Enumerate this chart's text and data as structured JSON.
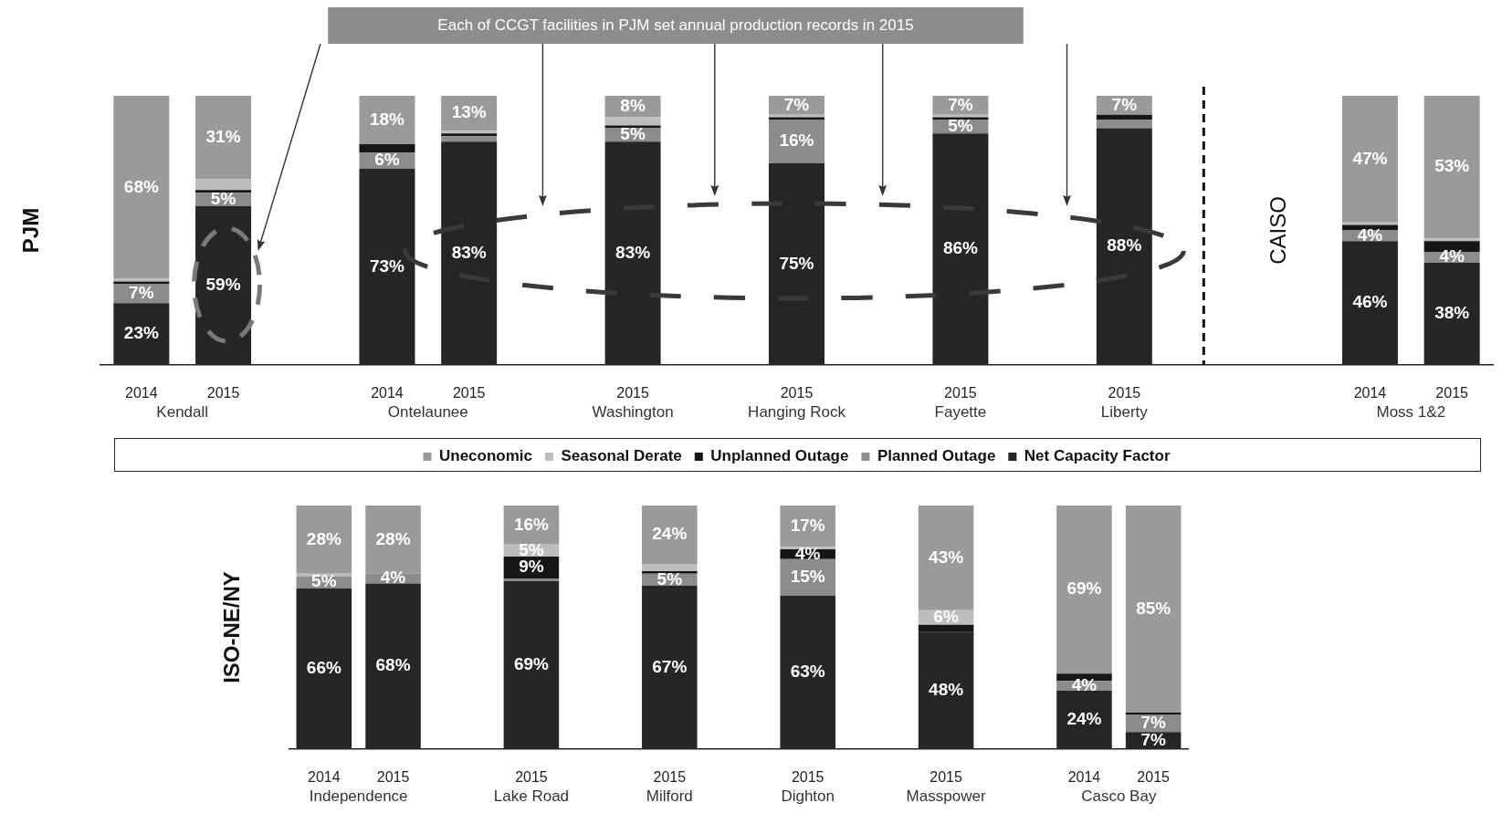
{
  "chart_data": [
    {
      "type": "bar",
      "title": "Each of CCGT facilities in PJM set annual production records in 2015",
      "ylabel": "PJM",
      "y2label": "CAISO",
      "stacked": true,
      "legend": "bottom",
      "tick_labels": "x",
      "ylim": [
        0,
        100
      ],
      "categories": [
        "2014",
        "2015",
        null,
        "2014",
        "2015",
        null,
        "2015",
        null,
        "2015",
        null,
        "2015",
        null,
        "2015",
        null,
        null,
        "2014",
        "2015"
      ],
      "annotations": [
        "Kendall",
        "Ontelaunee",
        "Washington",
        "Hanging Rock",
        "Fayette",
        "Liberty",
        "Moss 1&2"
      ],
      "series": [
        {
          "name": "Net Capacity Factor",
          "color": "#262626",
          "values": [
            23,
            59,
            null,
            73,
            83,
            null,
            83,
            null,
            75,
            null,
            86,
            null,
            88,
            null,
            null,
            46,
            38
          ],
          "value_labels": [
            "23%",
            "59%",
            null,
            "73%",
            "83%",
            null,
            "83%",
            null,
            "75%",
            null,
            "86%",
            null,
            "88%",
            null,
            null,
            "46%",
            "38%"
          ]
        },
        {
          "name": "Planned Outage",
          "color": "#8c8c8c",
          "values": [
            7,
            5,
            null,
            6,
            2,
            null,
            5,
            null,
            16,
            null,
            5,
            null,
            3,
            null,
            null,
            4,
            4
          ],
          "value_labels": [
            "7%",
            "5%",
            null,
            "6%",
            null,
            null,
            "5%",
            null,
            "16%",
            null,
            "5%",
            null,
            null,
            null,
            null,
            "4%",
            "4%"
          ]
        },
        {
          "name": "Unplanned Outage",
          "color": "#161616",
          "values": [
            1,
            1,
            null,
            3,
            1,
            null,
            1,
            null,
            1,
            null,
            1,
            null,
            2,
            null,
            null,
            2,
            4
          ]
        },
        {
          "name": "Seasonal Derate",
          "color": "#bdbdbd",
          "values": [
            1,
            4,
            null,
            0,
            1,
            null,
            3,
            null,
            1,
            null,
            1,
            null,
            0,
            null,
            null,
            1,
            1
          ]
        },
        {
          "name": "Uneconomic",
          "color": "#9a9a9a",
          "values": [
            68,
            31,
            null,
            18,
            13,
            null,
            8,
            null,
            7,
            null,
            7,
            null,
            7,
            null,
            null,
            47,
            53
          ],
          "value_labels": [
            "68%",
            "31%",
            null,
            "18%",
            "13%",
            null,
            "8%",
            null,
            "7%",
            null,
            "7%",
            null,
            "7%",
            null,
            null,
            "47%",
            "53%"
          ]
        }
      ]
    },
    {
      "type": "bar",
      "ylabel": "ISO-NE/NY",
      "stacked": true,
      "tick_labels": "x",
      "ylim": [
        0,
        100
      ],
      "categories": [
        "2014",
        "2015",
        null,
        "2015",
        null,
        "2015",
        null,
        "2015",
        null,
        "2015",
        null,
        "2014",
        "2015"
      ],
      "annotations": [
        "Independence",
        "Lake Road",
        "Milford",
        "Dighton",
        "Masspower",
        "Casco Bay"
      ],
      "series": [
        {
          "color": "#262626",
          "values": [
            66,
            68,
            null,
            69,
            null,
            67,
            null,
            63,
            null,
            48,
            null,
            24,
            7
          ],
          "value_labels": [
            "66%",
            "68%",
            null,
            "69%",
            null,
            "67%",
            null,
            "63%",
            null,
            "48%",
            null,
            "24%",
            "7%"
          ]
        },
        {
          "color": "#8c8c8c",
          "values": [
            5,
            4,
            null,
            1,
            null,
            5,
            null,
            15,
            null,
            0,
            null,
            4,
            7
          ],
          "value_labels": [
            "5%",
            "4%",
            null,
            null,
            null,
            "5%",
            null,
            "15%",
            null,
            null,
            null,
            "4%",
            "7%"
          ]
        },
        {
          "color": "#161616",
          "values": [
            0,
            0,
            null,
            9,
            null,
            1,
            null,
            4,
            null,
            3,
            null,
            3,
            1
          ],
          "value_labels": [
            null,
            null,
            null,
            "9%",
            null,
            null,
            null,
            "4%",
            null,
            null,
            null,
            null,
            null
          ]
        },
        {
          "color": "#bdbdbd",
          "values": [
            1,
            0,
            null,
            5,
            null,
            3,
            null,
            1,
            null,
            6,
            null,
            0,
            0
          ],
          "value_labels": [
            null,
            null,
            null,
            "5%",
            null,
            null,
            null,
            null,
            null,
            "6%",
            null,
            null,
            null
          ]
        },
        {
          "color": "#9a9a9a",
          "values": [
            28,
            28,
            null,
            16,
            null,
            24,
            null,
            17,
            null,
            43,
            null,
            69,
            85
          ],
          "value_labels": [
            "28%",
            "28%",
            null,
            "16%",
            null,
            "24%",
            null,
            "17%",
            null,
            "43%",
            null,
            "69%",
            "85%"
          ]
        }
      ]
    }
  ]
}
